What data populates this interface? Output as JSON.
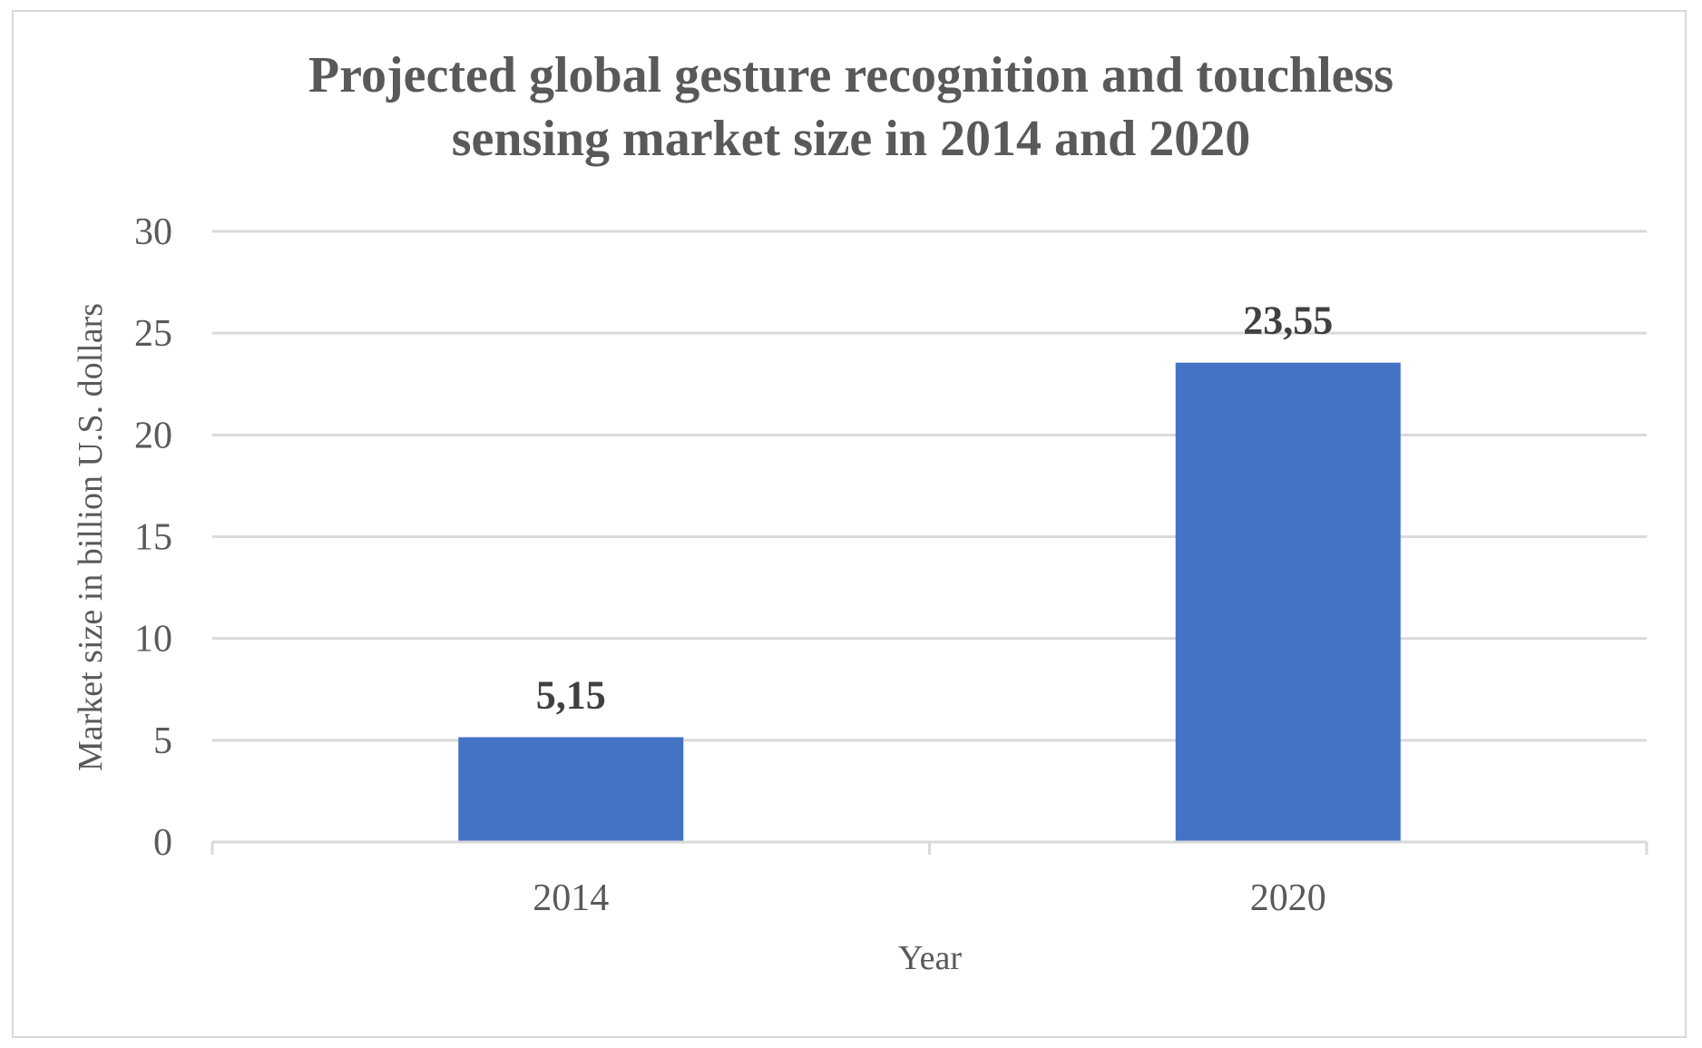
{
  "chart_data": {
    "type": "bar",
    "title": "Projected global gesture recognition and touchless sensing market size in 2014 and 2020",
    "title_lines": [
      "Projected global gesture recognition and touchless",
      "sensing market size in 2014 and 2020"
    ],
    "categories": [
      "2014",
      "2020"
    ],
    "values": [
      5.15,
      23.55
    ],
    "data_labels": [
      "5,15",
      "23,55"
    ],
    "xlabel": "Year",
    "ylabel": "Market size in billion U.S. dollars",
    "ylim": [
      0,
      30
    ],
    "yticks": [
      0,
      5,
      10,
      15,
      20,
      25,
      30
    ],
    "grid": true,
    "legend": "none",
    "bar_color": "#4472C4",
    "gridline_color": "#d9d9d9",
    "text_color": "#595959"
  }
}
